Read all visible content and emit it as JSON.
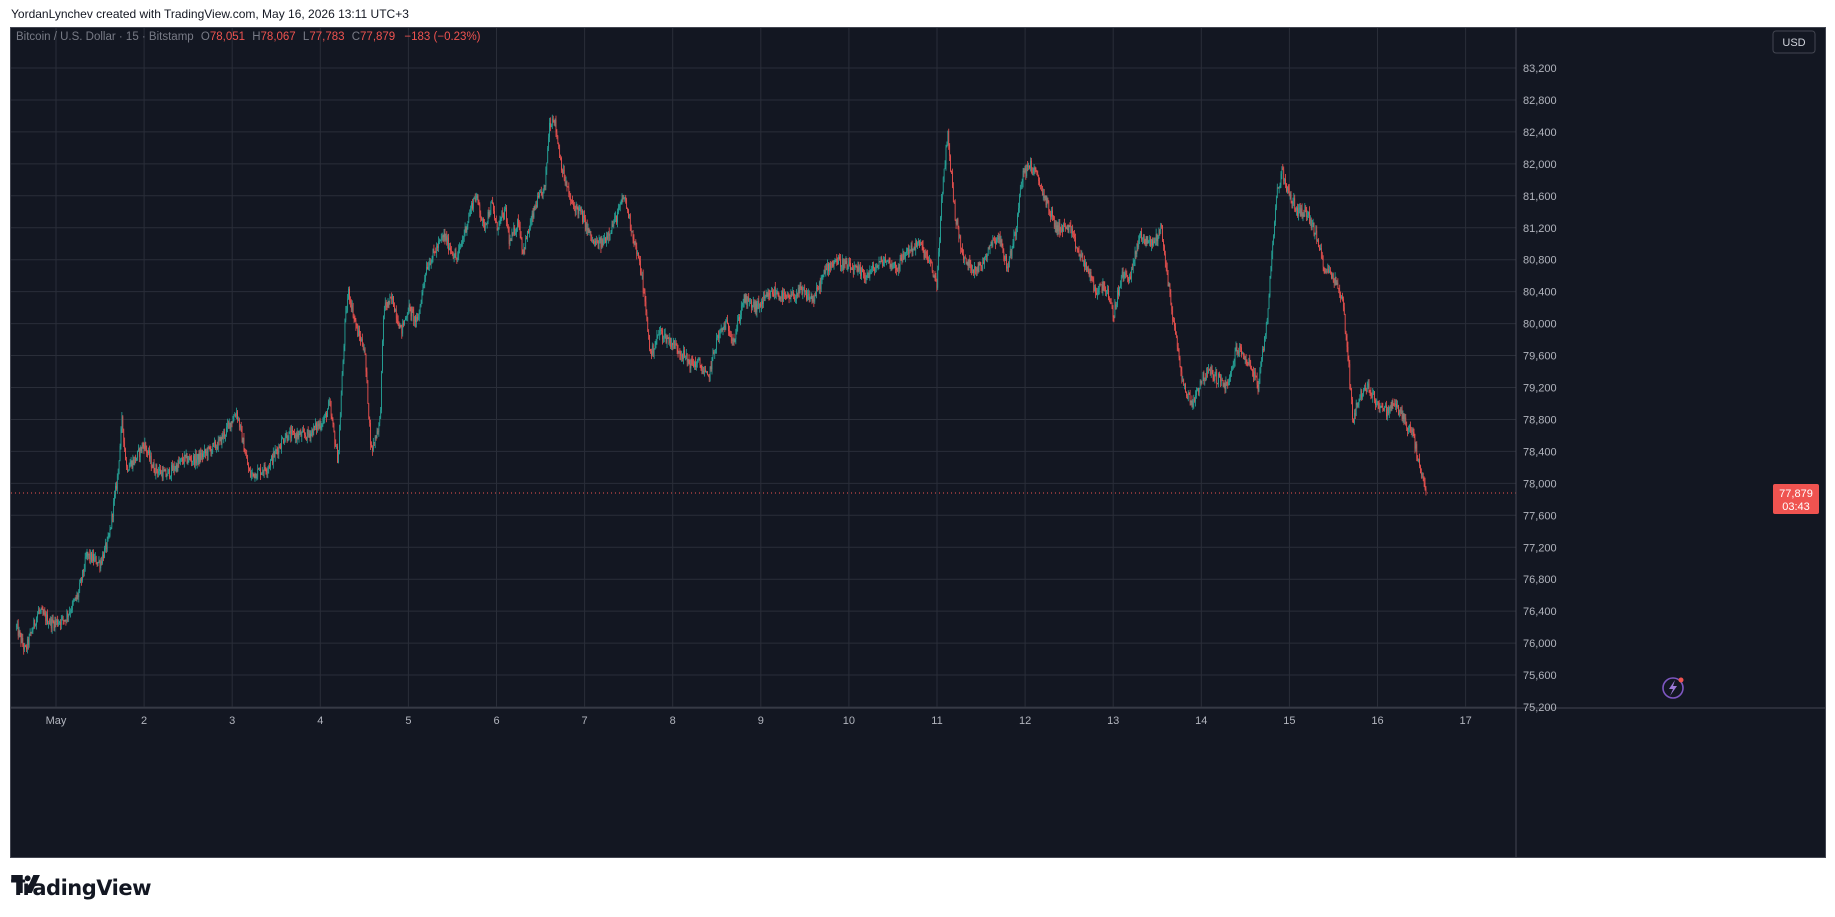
{
  "header": {
    "attribution": "YordanLynchev created with TradingView.com, May 16, 2026 13:11 UTC+3"
  },
  "legend": {
    "symbol": "Bitcoin / U.S. Dollar · 15 · Bitstamp",
    "open_label": "O",
    "open": "78,051",
    "high_label": "H",
    "high": "78,067",
    "low_label": "L",
    "low": "77,783",
    "close_label": "C",
    "close": "77,879",
    "change": "−183 (−0.23%)"
  },
  "currency_button": "USD",
  "last_price": {
    "price": "77,879",
    "countdown": "03:43"
  },
  "brand": {
    "name": "TradingView"
  },
  "colors": {
    "background": "#131722",
    "up": "#26a69a",
    "down": "#ef5350",
    "grid": "#2a2e39",
    "text": "#b2b5be"
  },
  "chart_data": {
    "type": "candlestick",
    "interval": "15",
    "y_axis": {
      "ticks": [
        "75,200",
        "75,600",
        "76,000",
        "76,400",
        "76,800",
        "77,200",
        "77,600",
        "78,000",
        "78,400",
        "78,800",
        "79,200",
        "79,600",
        "80,000",
        "80,400",
        "80,800",
        "81,200",
        "81,600",
        "82,000",
        "82,400",
        "82,800",
        "83,200"
      ],
      "range": [
        75200,
        83200
      ]
    },
    "x_axis": {
      "ticks": [
        "May",
        "2",
        "3",
        "4",
        "5",
        "6",
        "7",
        "8",
        "9",
        "10",
        "11",
        "12",
        "13",
        "14",
        "15",
        "16",
        "17"
      ],
      "range_days": [
        1,
        17
      ]
    },
    "price_path": [
      [
        0.55,
        76200
      ],
      [
        0.65,
        75900
      ],
      [
        0.8,
        76400
      ],
      [
        0.95,
        76250
      ],
      [
        1.1,
        76300
      ],
      [
        1.25,
        76600
      ],
      [
        1.35,
        77100
      ],
      [
        1.5,
        77000
      ],
      [
        1.6,
        77300
      ],
      [
        1.7,
        78100
      ],
      [
        1.75,
        78800
      ],
      [
        1.8,
        78200
      ],
      [
        1.9,
        78300
      ],
      [
        2.0,
        78500
      ],
      [
        2.1,
        78200
      ],
      [
        2.25,
        78100
      ],
      [
        2.45,
        78300
      ],
      [
        2.6,
        78300
      ],
      [
        2.85,
        78500
      ],
      [
        3.05,
        78900
      ],
      [
        3.2,
        78100
      ],
      [
        3.4,
        78200
      ],
      [
        3.6,
        78600
      ],
      [
        3.85,
        78600
      ],
      [
        4.05,
        78800
      ],
      [
        4.1,
        79000
      ],
      [
        4.2,
        78300
      ],
      [
        4.28,
        80000
      ],
      [
        4.32,
        80400
      ],
      [
        4.42,
        79900
      ],
      [
        4.5,
        79700
      ],
      [
        4.58,
        78400
      ],
      [
        4.68,
        78800
      ],
      [
        4.72,
        80200
      ],
      [
        4.82,
        80300
      ],
      [
        4.92,
        79900
      ],
      [
        5.0,
        80200
      ],
      [
        5.1,
        80000
      ],
      [
        5.2,
        80700
      ],
      [
        5.3,
        80900
      ],
      [
        5.4,
        81100
      ],
      [
        5.55,
        80800
      ],
      [
        5.65,
        81200
      ],
      [
        5.75,
        81600
      ],
      [
        5.8,
        81500
      ],
      [
        5.85,
        81200
      ],
      [
        5.95,
        81500
      ],
      [
        6.0,
        81200
      ],
      [
        6.1,
        81400
      ],
      [
        6.15,
        81000
      ],
      [
        6.25,
        81300
      ],
      [
        6.3,
        80900
      ],
      [
        6.45,
        81500
      ],
      [
        6.55,
        81700
      ],
      [
        6.6,
        82500
      ],
      [
        6.65,
        82600
      ],
      [
        6.75,
        81900
      ],
      [
        6.85,
        81500
      ],
      [
        6.95,
        81400
      ],
      [
        7.1,
        81000
      ],
      [
        7.2,
        81000
      ],
      [
        7.35,
        81300
      ],
      [
        7.45,
        81600
      ],
      [
        7.55,
        81100
      ],
      [
        7.65,
        80600
      ],
      [
        7.75,
        79600
      ],
      [
        7.85,
        79900
      ],
      [
        7.95,
        79800
      ],
      [
        8.05,
        79700
      ],
      [
        8.2,
        79500
      ],
      [
        8.3,
        79500
      ],
      [
        8.4,
        79300
      ],
      [
        8.5,
        79800
      ],
      [
        8.6,
        80000
      ],
      [
        8.7,
        79800
      ],
      [
        8.8,
        80300
      ],
      [
        8.95,
        80200
      ],
      [
        9.05,
        80300
      ],
      [
        9.15,
        80400
      ],
      [
        9.3,
        80300
      ],
      [
        9.45,
        80400
      ],
      [
        9.6,
        80300
      ],
      [
        9.75,
        80700
      ],
      [
        9.85,
        80800
      ],
      [
        10.0,
        80700
      ],
      [
        10.2,
        80600
      ],
      [
        10.4,
        80800
      ],
      [
        10.55,
        80700
      ],
      [
        10.65,
        80900
      ],
      [
        10.8,
        81000
      ],
      [
        10.9,
        80800
      ],
      [
        11.0,
        80500
      ],
      [
        11.05,
        81500
      ],
      [
        11.12,
        82400
      ],
      [
        11.2,
        81400
      ],
      [
        11.3,
        80800
      ],
      [
        11.4,
        80700
      ],
      [
        11.5,
        80700
      ],
      [
        11.6,
        81000
      ],
      [
        11.7,
        81100
      ],
      [
        11.8,
        80700
      ],
      [
        11.9,
        81200
      ],
      [
        11.95,
        81800
      ],
      [
        12.05,
        82000
      ],
      [
        12.15,
        81800
      ],
      [
        12.25,
        81500
      ],
      [
        12.35,
        81200
      ],
      [
        12.5,
        81200
      ],
      [
        12.6,
        80900
      ],
      [
        12.7,
        80700
      ],
      [
        12.8,
        80400
      ],
      [
        12.9,
        80500
      ],
      [
        13.0,
        80100
      ],
      [
        13.1,
        80600
      ],
      [
        13.2,
        80600
      ],
      [
        13.3,
        81100
      ],
      [
        13.45,
        81000
      ],
      [
        13.55,
        81200
      ],
      [
        13.6,
        80700
      ],
      [
        13.7,
        79900
      ],
      [
        13.8,
        79200
      ],
      [
        13.9,
        79000
      ],
      [
        14.0,
        79300
      ],
      [
        14.1,
        79400
      ],
      [
        14.2,
        79300
      ],
      [
        14.3,
        79200
      ],
      [
        14.4,
        79700
      ],
      [
        14.55,
        79500
      ],
      [
        14.65,
        79200
      ],
      [
        14.75,
        80100
      ],
      [
        14.85,
        81600
      ],
      [
        14.92,
        81900
      ],
      [
        15.0,
        81600
      ],
      [
        15.1,
        81400
      ],
      [
        15.2,
        81400
      ],
      [
        15.3,
        81100
      ],
      [
        15.4,
        80700
      ],
      [
        15.5,
        80600
      ],
      [
        15.6,
        80300
      ],
      [
        15.65,
        79800
      ],
      [
        15.72,
        78800
      ],
      [
        15.8,
        79100
      ],
      [
        15.9,
        79200
      ],
      [
        16.0,
        79000
      ],
      [
        16.1,
        78900
      ],
      [
        16.2,
        79000
      ],
      [
        16.3,
        78800
      ],
      [
        16.4,
        78600
      ],
      [
        16.5,
        78100
      ],
      [
        16.55,
        77879
      ]
    ],
    "last_price": 77879
  }
}
